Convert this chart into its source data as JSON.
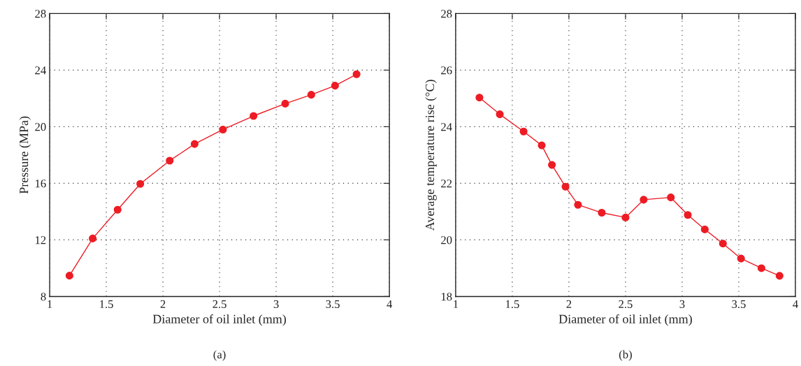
{
  "chart_data": [
    {
      "type": "line",
      "xlabel": "Diameter of oil inlet (mm)",
      "ylabel": "Pressure (MPa)",
      "annotations": [
        "(a)"
      ],
      "xlim": [
        1,
        4
      ],
      "ylim": [
        8,
        28
      ],
      "xticks": [
        1,
        1.5,
        2,
        2.5,
        3,
        3.5,
        4
      ],
      "yticks": [
        8,
        12,
        16,
        20,
        24,
        28
      ],
      "grid": true,
      "marker": "circle",
      "line_style": "solid",
      "series": [
        {
          "color": "#ed1c24",
          "x": [
            1.175,
            1.38,
            1.6,
            1.8,
            2.06,
            2.28,
            2.53,
            2.8,
            3.08,
            3.31,
            3.52,
            3.71
          ],
          "values": [
            9.47,
            12.1,
            14.13,
            15.96,
            17.6,
            18.78,
            19.8,
            20.76,
            21.63,
            22.26,
            22.9,
            23.71
          ]
        }
      ]
    },
    {
      "type": "line",
      "xlabel": "Diameter of oil inlet (mm)",
      "ylabel": "Average temperature rise (°C)",
      "annotations": [
        "(b)"
      ],
      "xlim": [
        1,
        4
      ],
      "ylim": [
        18,
        28
      ],
      "xticks": [
        1,
        1.5,
        2,
        2.5,
        3,
        3.5,
        4
      ],
      "yticks": [
        18,
        20,
        22,
        24,
        26,
        28
      ],
      "grid": true,
      "marker": "circle",
      "line_style": "solid",
      "series": [
        {
          "color": "#ed1c24",
          "x": [
            1.21,
            1.39,
            1.6,
            1.76,
            1.85,
            1.97,
            2.08,
            2.29,
            2.5,
            2.66,
            2.9,
            3.05,
            3.2,
            3.36,
            3.52,
            3.7,
            3.86
          ],
          "values": [
            25.03,
            24.44,
            23.83,
            23.34,
            22.65,
            21.88,
            21.24,
            20.96,
            20.79,
            21.42,
            21.5,
            20.88,
            20.37,
            19.87,
            19.34,
            19.0,
            18.73
          ]
        }
      ]
    }
  ]
}
